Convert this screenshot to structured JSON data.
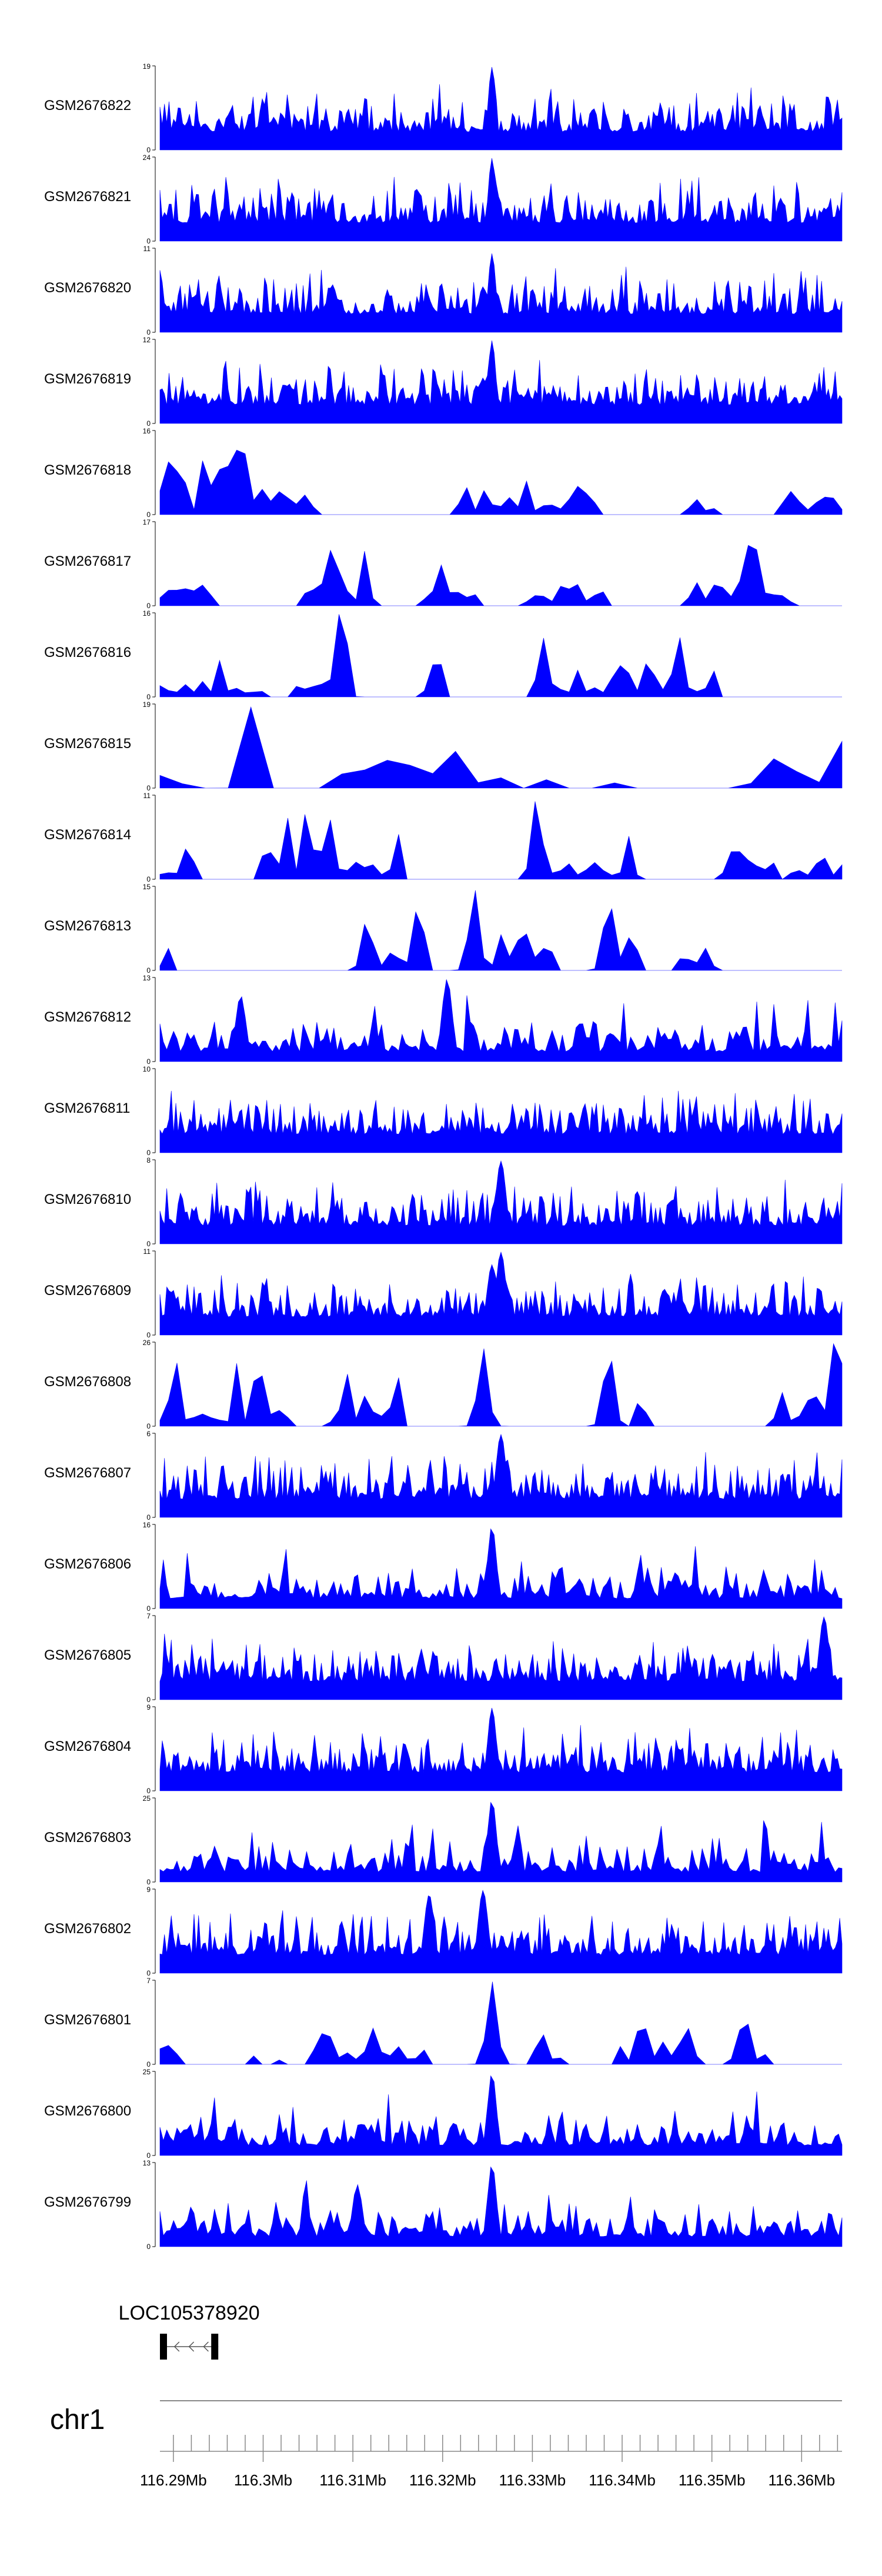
{
  "chart_data": {
    "type": "area",
    "title": "",
    "chromosome": "chr1",
    "x_unit": "Mb",
    "xlim": [
      116.2885,
      116.3645
    ],
    "x_ticks": [
      116.29,
      116.3,
      116.31,
      116.32,
      116.33,
      116.34,
      116.35,
      116.36
    ],
    "x_tick_labels": [
      "116.29Mb",
      "116.3Mb",
      "116.31Mb",
      "116.32Mb",
      "116.33Mb",
      "116.34Mb",
      "116.35Mb",
      "116.36Mb"
    ],
    "color": "#0000ff",
    "tracks": [
      {
        "name": "GSM2676822",
        "ymax": 19,
        "style": "dense",
        "seed": 822,
        "peaks": [
          [
            116.3255,
            1.0,
            0.0006
          ],
          [
            116.3095,
            0.28,
            0.0008
          ]
        ]
      },
      {
        "name": "GSM2676821",
        "ymax": 24,
        "style": "dense",
        "seed": 821,
        "peaks": [
          [
            116.3255,
            1.0,
            0.0006
          ]
        ]
      },
      {
        "name": "GSM2676820",
        "ymax": 11,
        "style": "dense",
        "seed": 820,
        "peaks": [
          [
            116.3255,
            0.95,
            0.0006
          ],
          [
            116.3245,
            0.55,
            0.0008
          ]
        ]
      },
      {
        "name": "GSM2676819",
        "ymax": 12,
        "style": "dense",
        "seed": 819,
        "peaks": [
          [
            116.3255,
            1.0,
            0.0006
          ],
          [
            116.3245,
            0.55,
            0.0008
          ]
        ]
      },
      {
        "name": "GSM2676818",
        "ymax": 16,
        "style": "sparse",
        "seed": 818,
        "peaks": [
          [
            116.2975,
            1.0,
            0.0009
          ],
          [
            116.2965,
            0.75,
            0.0008
          ]
        ]
      },
      {
        "name": "GSM2676817",
        "ymax": 17,
        "style": "sparse",
        "seed": 817,
        "peaks": [
          [
            116.3545,
            1.0,
            0.0008
          ]
        ]
      },
      {
        "name": "GSM2676816",
        "ymax": 16,
        "style": "sparse",
        "seed": 816,
        "peaks": [
          [
            116.3085,
            1.0,
            0.0008
          ]
        ]
      },
      {
        "name": "GSM2676815",
        "ymax": 19,
        "style": "verysparse",
        "seed": 815,
        "peaks": [
          [
            116.2985,
            1.0,
            0.0009
          ]
        ]
      },
      {
        "name": "GSM2676814",
        "ymax": 11,
        "style": "sparse",
        "seed": 814,
        "peaks": [
          [
            116.3305,
            1.0,
            0.0008
          ]
        ]
      },
      {
        "name": "GSM2676813",
        "ymax": 15,
        "style": "sparse",
        "seed": 813,
        "peaks": [
          [
            116.3235,
            1.0,
            0.0008
          ],
          [
            116.3385,
            0.9,
            0.0008
          ]
        ]
      },
      {
        "name": "GSM2676812",
        "ymax": 13,
        "style": "medium",
        "seed": 812,
        "peaks": [
          [
            116.3205,
            1.0,
            0.0008
          ],
          [
            116.2975,
            0.8,
            0.0008
          ]
        ]
      },
      {
        "name": "GSM2676811",
        "ymax": 10,
        "style": "dense",
        "seed": 811,
        "peaks": []
      },
      {
        "name": "GSM2676810",
        "ymax": 8,
        "style": "dense",
        "seed": 810,
        "peaks": [
          [
            116.3265,
            1.0,
            0.0008
          ]
        ]
      },
      {
        "name": "GSM2676809",
        "ymax": 11,
        "style": "dense",
        "seed": 809,
        "peaks": [
          [
            116.3265,
            1.0,
            0.0008
          ],
          [
            116.3255,
            0.85,
            0.0008
          ]
        ]
      },
      {
        "name": "GSM2676808",
        "ymax": 26,
        "style": "sparse",
        "seed": 808,
        "peaks": [
          [
            116.3635,
            1.0,
            0.0007
          ],
          [
            116.3245,
            0.95,
            0.0008
          ],
          [
            116.3385,
            0.95,
            0.0008
          ]
        ]
      },
      {
        "name": "GSM2676807",
        "ymax": 6,
        "style": "dense",
        "seed": 807,
        "peaks": [
          [
            116.3265,
            1.0,
            0.0008
          ]
        ]
      },
      {
        "name": "GSM2676806",
        "ymax": 16,
        "style": "medium",
        "seed": 806,
        "peaks": [
          [
            116.3255,
            1.0,
            0.0007
          ]
        ]
      },
      {
        "name": "GSM2676805",
        "ymax": 7,
        "style": "dense",
        "seed": 805,
        "peaks": [
          [
            116.3625,
            1.0,
            0.0008
          ]
        ]
      },
      {
        "name": "GSM2676804",
        "ymax": 9,
        "style": "dense",
        "seed": 804,
        "peaks": [
          [
            116.3255,
            1.0,
            0.0007
          ]
        ]
      },
      {
        "name": "GSM2676803",
        "ymax": 25,
        "style": "medium",
        "seed": 803,
        "peaks": [
          [
            116.3255,
            1.0,
            0.0007
          ]
        ]
      },
      {
        "name": "GSM2676802",
        "ymax": 9,
        "style": "dense",
        "seed": 802,
        "peaks": [
          [
            116.3245,
            1.0,
            0.0008
          ],
          [
            116.3185,
            0.95,
            0.0008
          ]
        ]
      },
      {
        "name": "GSM2676801",
        "ymax": 7,
        "style": "sparse",
        "seed": 801,
        "peaks": [
          [
            116.3255,
            1.0,
            0.0008
          ]
        ]
      },
      {
        "name": "GSM2676800",
        "ymax": 25,
        "style": "medium",
        "seed": 800,
        "peaks": [
          [
            116.3255,
            1.0,
            0.0007
          ]
        ]
      },
      {
        "name": "GSM2676799",
        "ymax": 13,
        "style": "medium",
        "seed": 799,
        "peaks": [
          [
            116.3255,
            1.0,
            0.0007
          ],
          [
            116.3105,
            0.75,
            0.0008
          ]
        ]
      }
    ],
    "gene": {
      "label": "LOC105378920",
      "start": 116.2885,
      "end": 116.295,
      "strand": "-"
    }
  }
}
